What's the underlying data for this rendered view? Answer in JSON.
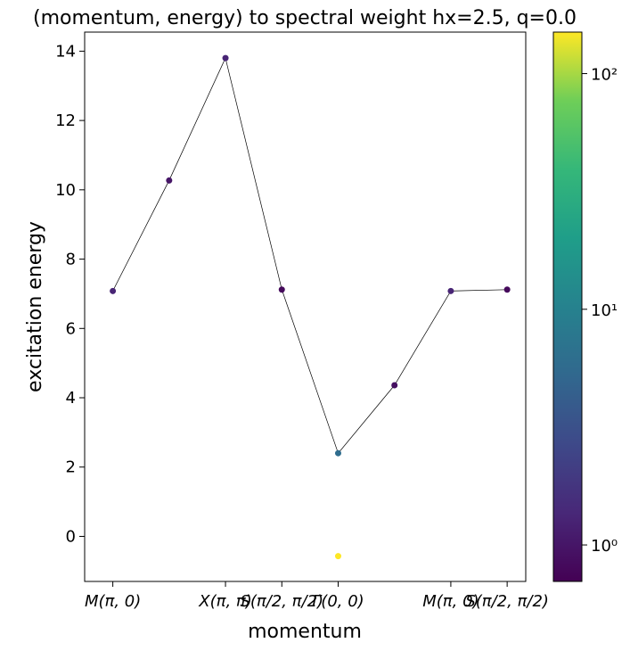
{
  "chart_data": {
    "type": "scatter",
    "title": "(momentum, energy) to spectral weight hx=2.5, q=0.0",
    "xlabel": "momentum",
    "ylabel": "excitation energy",
    "xlim": [
      -0.5,
      7.33
    ],
    "ylim": [
      -1.3,
      14.55
    ],
    "yticks": [
      0,
      2,
      4,
      6,
      8,
      10,
      12,
      14
    ],
    "xticks": [
      {
        "x": 0,
        "label": "M(π, 0)"
      },
      {
        "x": 2,
        "label": "X(π, π)"
      },
      {
        "x": 3,
        "label": "S(π/2, π/2)"
      },
      {
        "x": 4,
        "label": "Γ(0, 0)"
      },
      {
        "x": 6,
        "label": "M(π, 0)"
      },
      {
        "x": 7,
        "label": "S(π/2, π/2)"
      }
    ],
    "line": {
      "color": "#000000",
      "x": [
        0,
        1,
        2,
        3,
        4,
        5,
        6,
        7
      ],
      "y": [
        7.08,
        10.27,
        13.8,
        7.12,
        2.4,
        4.36,
        7.08,
        7.12
      ]
    },
    "points": [
      {
        "x": 0,
        "y": 7.08,
        "weight": 1.3
      },
      {
        "x": 1,
        "y": 10.27,
        "weight": 1.0
      },
      {
        "x": 2,
        "y": 13.8,
        "weight": 1.3
      },
      {
        "x": 3,
        "y": 7.12,
        "weight": 0.8
      },
      {
        "x": 4,
        "y": 2.4,
        "weight": 6.0
      },
      {
        "x": 4,
        "y": -0.57,
        "weight": 150
      },
      {
        "x": 5,
        "y": 4.36,
        "weight": 0.9
      },
      {
        "x": 6,
        "y": 7.08,
        "weight": 1.3
      },
      {
        "x": 7,
        "y": 7.12,
        "weight": 0.8
      }
    ],
    "colorbar": {
      "scale": "log",
      "colormap": "viridis",
      "range": [
        0.7,
        150
      ],
      "ticks": [
        {
          "value": 1,
          "label": "10⁰"
        },
        {
          "value": 10,
          "label": "10¹"
        },
        {
          "value": 100,
          "label": "10²"
        }
      ]
    }
  }
}
